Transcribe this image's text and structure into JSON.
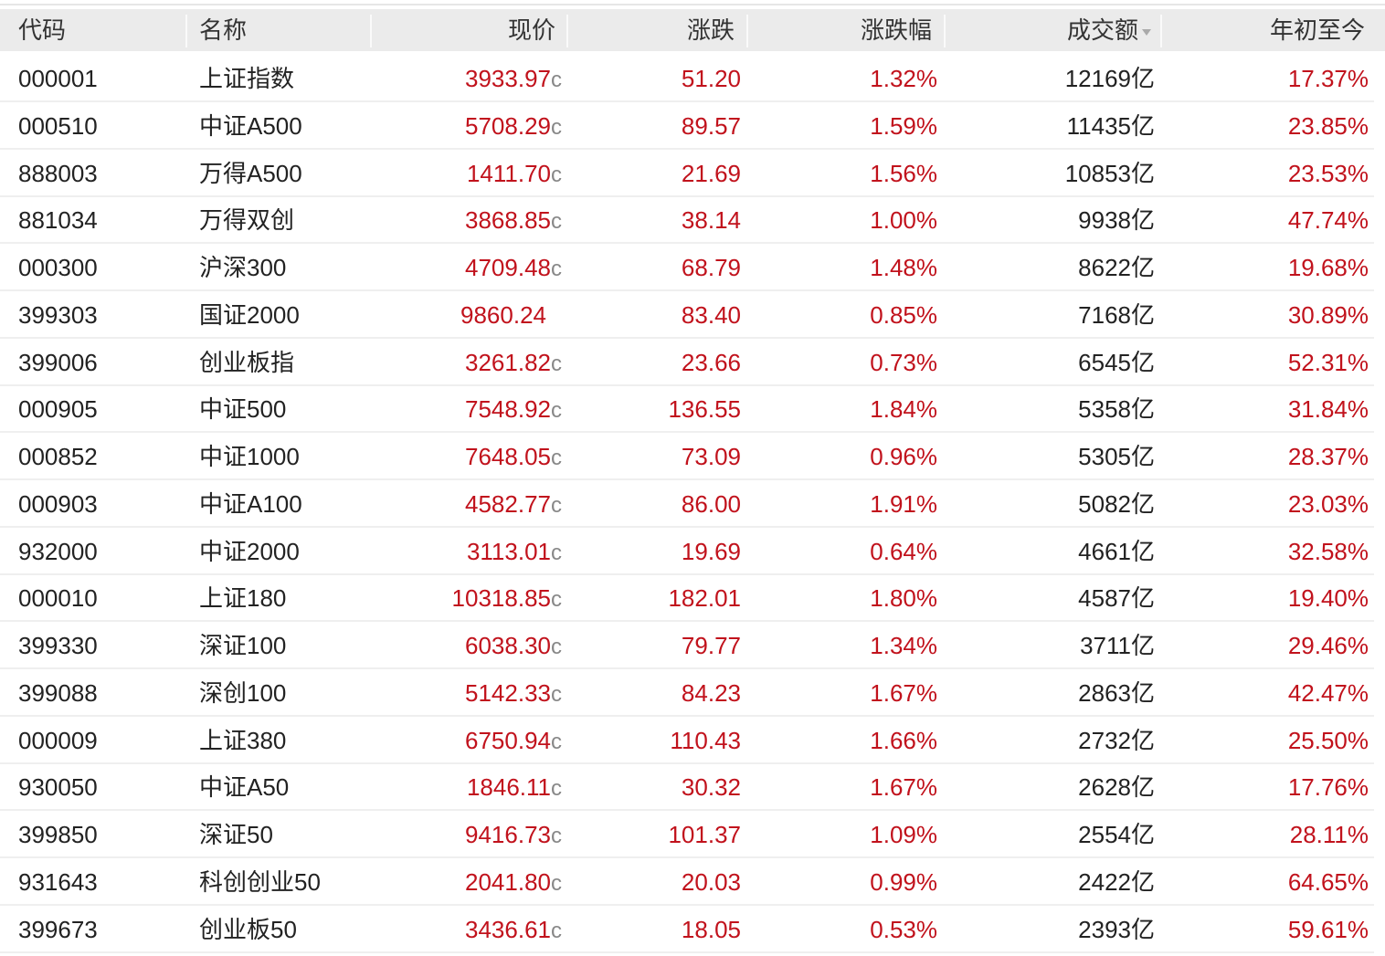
{
  "header": {
    "columns": [
      "代码",
      "名称",
      "现价",
      "涨跌",
      "涨跌幅",
      "成交额",
      "年初至今"
    ],
    "sorted_column": "成交额",
    "sort_icon": "triangle-down-icon"
  },
  "colors": {
    "up": "#c1121c",
    "text": "#222222",
    "header_bg": "#ebebeb"
  },
  "rows": [
    {
      "code": "000001",
      "name": "上证指数",
      "price": "3933.97",
      "suffix": "c",
      "change": "51.20",
      "pct": "1.32%",
      "volume": "12169亿",
      "ytd": "17.37%"
    },
    {
      "code": "000510",
      "name": "中证A500",
      "price": "5708.29",
      "suffix": "c",
      "change": "89.57",
      "pct": "1.59%",
      "volume": "11435亿",
      "ytd": "23.85%"
    },
    {
      "code": "888003",
      "name": "万得A500",
      "price": "1411.70",
      "suffix": "c",
      "change": "21.69",
      "pct": "1.56%",
      "volume": "10853亿",
      "ytd": "23.53%"
    },
    {
      "code": "881034",
      "name": "万得双创",
      "price": "3868.85",
      "suffix": "c",
      "change": "38.14",
      "pct": "1.00%",
      "volume": "9938亿",
      "ytd": "47.74%"
    },
    {
      "code": "000300",
      "name": "沪深300",
      "price": "4709.48",
      "suffix": "c",
      "change": "68.79",
      "pct": "1.48%",
      "volume": "8622亿",
      "ytd": "19.68%"
    },
    {
      "code": "399303",
      "name": "国证2000",
      "price": "9860.24",
      "suffix": "",
      "change": "83.40",
      "pct": "0.85%",
      "volume": "7168亿",
      "ytd": "30.89%"
    },
    {
      "code": "399006",
      "name": "创业板指",
      "price": "3261.82",
      "suffix": "c",
      "change": "23.66",
      "pct": "0.73%",
      "volume": "6545亿",
      "ytd": "52.31%"
    },
    {
      "code": "000905",
      "name": "中证500",
      "price": "7548.92",
      "suffix": "c",
      "change": "136.55",
      "pct": "1.84%",
      "volume": "5358亿",
      "ytd": "31.84%"
    },
    {
      "code": "000852",
      "name": "中证1000",
      "price": "7648.05",
      "suffix": "c",
      "change": "73.09",
      "pct": "0.96%",
      "volume": "5305亿",
      "ytd": "28.37%"
    },
    {
      "code": "000903",
      "name": "中证A100",
      "price": "4582.77",
      "suffix": "c",
      "change": "86.00",
      "pct": "1.91%",
      "volume": "5082亿",
      "ytd": "23.03%"
    },
    {
      "code": "932000",
      "name": "中证2000",
      "price": "3113.01",
      "suffix": "c",
      "change": "19.69",
      "pct": "0.64%",
      "volume": "4661亿",
      "ytd": "32.58%"
    },
    {
      "code": "000010",
      "name": "上证180",
      "price": "10318.85",
      "suffix": "c",
      "change": "182.01",
      "pct": "1.80%",
      "volume": "4587亿",
      "ytd": "19.40%"
    },
    {
      "code": "399330",
      "name": "深证100",
      "price": "6038.30",
      "suffix": "c",
      "change": "79.77",
      "pct": "1.34%",
      "volume": "3711亿",
      "ytd": "29.46%"
    },
    {
      "code": "399088",
      "name": "深创100",
      "price": "5142.33",
      "suffix": "c",
      "change": "84.23",
      "pct": "1.67%",
      "volume": "2863亿",
      "ytd": "42.47%"
    },
    {
      "code": "000009",
      "name": "上证380",
      "price": "6750.94",
      "suffix": "c",
      "change": "110.43",
      "pct": "1.66%",
      "volume": "2732亿",
      "ytd": "25.50%"
    },
    {
      "code": "930050",
      "name": "中证A50",
      "price": "1846.11",
      "suffix": "c",
      "change": "30.32",
      "pct": "1.67%",
      "volume": "2628亿",
      "ytd": "17.76%"
    },
    {
      "code": "399850",
      "name": "深证50",
      "price": "9416.73",
      "suffix": "c",
      "change": "101.37",
      "pct": "1.09%",
      "volume": "2554亿",
      "ytd": "28.11%"
    },
    {
      "code": "931643",
      "name": "科创创业50",
      "price": "2041.80",
      "suffix": "c",
      "change": "20.03",
      "pct": "0.99%",
      "volume": "2422亿",
      "ytd": "64.65%"
    },
    {
      "code": "399673",
      "name": "创业板50",
      "price": "3436.61",
      "suffix": "c",
      "change": "18.05",
      "pct": "0.53%",
      "volume": "2393亿",
      "ytd": "59.61%"
    }
  ]
}
